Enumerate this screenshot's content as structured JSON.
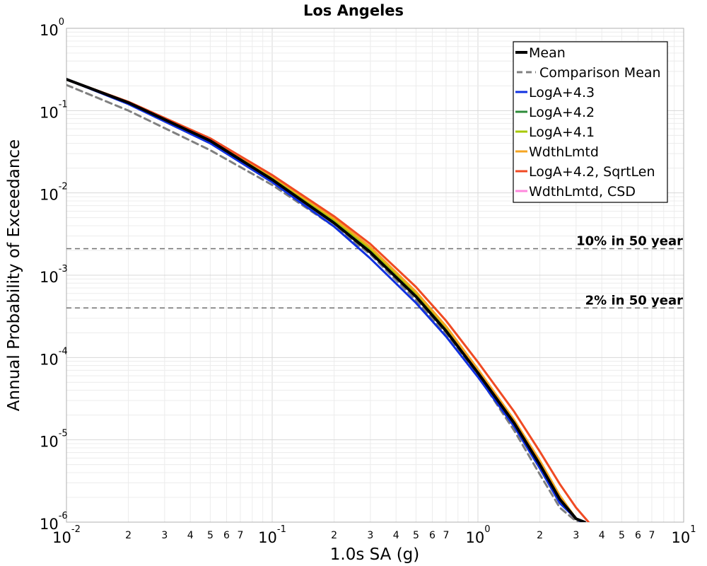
{
  "chart_data": {
    "type": "line",
    "title": "Los Angeles",
    "xlabel": "1.0s SA (g)",
    "ylabel": "Annual Probability of Exceedance",
    "xscale": "log",
    "yscale": "log",
    "xlim": [
      0.01,
      10
    ],
    "ylim": [
      1e-06,
      1
    ],
    "grid": true,
    "legend_position": "top-right",
    "x_major_ticks": [
      {
        "value": 0.01,
        "base": "10",
        "exp": "-2"
      },
      {
        "value": 0.1,
        "base": "10",
        "exp": "-1"
      },
      {
        "value": 1,
        "base": "10",
        "exp": "0"
      },
      {
        "value": 10,
        "base": "10",
        "exp": "1"
      }
    ],
    "y_major_ticks": [
      {
        "value": 1,
        "base": "10",
        "exp": "0"
      },
      {
        "value": 0.1,
        "base": "10",
        "exp": "-1"
      },
      {
        "value": 0.01,
        "base": "10",
        "exp": "-2"
      },
      {
        "value": 0.001,
        "base": "10",
        "exp": "-3"
      },
      {
        "value": 0.0001,
        "base": "10",
        "exp": "-4"
      },
      {
        "value": 1e-05,
        "base": "10",
        "exp": "-5"
      },
      {
        "value": 1e-06,
        "base": "10",
        "exp": "-6"
      }
    ],
    "x_minor_tick_labels": [
      "2",
      "3",
      "4",
      "5",
      "6",
      "7"
    ],
    "reference_lines": [
      {
        "label": "10% in 50 year",
        "y": 0.0021
      },
      {
        "label": "2% in 50 year",
        "y": 0.0004
      }
    ],
    "series": [
      {
        "name": "Mean",
        "color": "#000000",
        "style": "solid",
        "width": 4,
        "x": [
          0.01,
          0.02,
          0.05,
          0.1,
          0.2,
          0.3,
          0.5,
          0.7,
          1.0,
          1.5,
          2.0,
          2.5,
          3.0,
          3.3
        ],
        "y": [
          0.24,
          0.125,
          0.043,
          0.0145,
          0.0043,
          0.0019,
          0.00055,
          0.00021,
          6.5e-05,
          1.6e-05,
          5e-06,
          1.9e-06,
          1.1e-06,
          1e-06
        ]
      },
      {
        "name": "Comparison Mean",
        "color": "#808080",
        "style": "dashed",
        "width": 3,
        "x": [
          0.01,
          0.02,
          0.05,
          0.1,
          0.2,
          0.3,
          0.5,
          0.7,
          1.0,
          1.5,
          2.0,
          2.5,
          2.9,
          3.1
        ],
        "y": [
          0.205,
          0.1,
          0.033,
          0.0125,
          0.0039,
          0.0018,
          0.0005,
          0.00019,
          6e-05,
          1.3e-05,
          3.8e-06,
          1.5e-06,
          1.1e-06,
          1e-06
        ]
      },
      {
        "name": "LogA+4.3",
        "color": "#1030e0",
        "style": "solid",
        "width": 3,
        "x": [
          0.01,
          0.02,
          0.05,
          0.1,
          0.2,
          0.3,
          0.5,
          0.7,
          1.0,
          1.5,
          2.0,
          2.5,
          3.0,
          3.2
        ],
        "y": [
          0.24,
          0.12,
          0.04,
          0.0135,
          0.0039,
          0.0016,
          0.00046,
          0.00018,
          5.8e-05,
          1.45e-05,
          4.5e-06,
          1.7e-06,
          1.1e-06,
          1e-06
        ]
      },
      {
        "name": "LogA+4.2",
        "color": "#2e8b3a",
        "style": "solid",
        "width": 3,
        "x": [
          0.01,
          0.02,
          0.05,
          0.1,
          0.2,
          0.3,
          0.5,
          0.7,
          1.0,
          1.5,
          2.0,
          2.5,
          3.0,
          3.3
        ],
        "y": [
          0.24,
          0.126,
          0.044,
          0.015,
          0.0045,
          0.002,
          0.00057,
          0.00022,
          6.8e-05,
          1.65e-05,
          5.2e-06,
          2e-06,
          1.1e-06,
          1e-06
        ]
      },
      {
        "name": "LogA+4.1",
        "color": "#a8c800",
        "style": "solid",
        "width": 3,
        "x": [
          0.01,
          0.02,
          0.05,
          0.1,
          0.2,
          0.3,
          0.5,
          0.7,
          1.0,
          1.5,
          2.0,
          2.5,
          3.0,
          3.3
        ],
        "y": [
          0.24,
          0.127,
          0.045,
          0.0155,
          0.0047,
          0.0021,
          0.0006,
          0.00023,
          7e-05,
          1.7e-05,
          5.4e-06,
          2.1e-06,
          1.1e-06,
          1e-06
        ]
      },
      {
        "name": "WdthLmtd",
        "color": "#f5a623",
        "style": "solid",
        "width": 3,
        "x": [
          0.01,
          0.02,
          0.05,
          0.1,
          0.2,
          0.3,
          0.5,
          0.7,
          1.0,
          1.5,
          2.0,
          2.5,
          3.0,
          3.3
        ],
        "y": [
          0.24,
          0.128,
          0.046,
          0.016,
          0.0049,
          0.0022,
          0.00063,
          0.00024,
          7.2e-05,
          1.75e-05,
          5.6e-06,
          2.1e-06,
          1.1e-06,
          1e-06
        ]
      },
      {
        "name": "LogA+4.2, SqrtLen",
        "color": "#f04a23",
        "style": "solid",
        "width": 3,
        "x": [
          0.01,
          0.02,
          0.05,
          0.1,
          0.2,
          0.3,
          0.5,
          0.7,
          1.0,
          1.5,
          2.0,
          2.5,
          3.0,
          3.45
        ],
        "y": [
          0.24,
          0.128,
          0.046,
          0.0165,
          0.0052,
          0.0024,
          0.00072,
          0.00028,
          8.8e-05,
          2.2e-05,
          7.2e-06,
          2.9e-06,
          1.5e-06,
          1e-06
        ]
      },
      {
        "name": "WdthLmtd, CSD",
        "color": "#ff88dd",
        "style": "solid",
        "width": 3,
        "x": [
          0.01,
          0.02,
          0.05,
          0.1,
          0.2,
          0.3,
          0.5,
          0.7,
          1.0,
          1.5,
          2.0,
          2.5,
          3.0,
          3.3
        ],
        "y": [
          0.24,
          0.125,
          0.043,
          0.0145,
          0.0043,
          0.0019,
          0.00055,
          0.00021,
          6.5e-05,
          1.6e-05,
          5e-06,
          1.9e-06,
          1.1e-06,
          1e-06
        ]
      }
    ]
  }
}
